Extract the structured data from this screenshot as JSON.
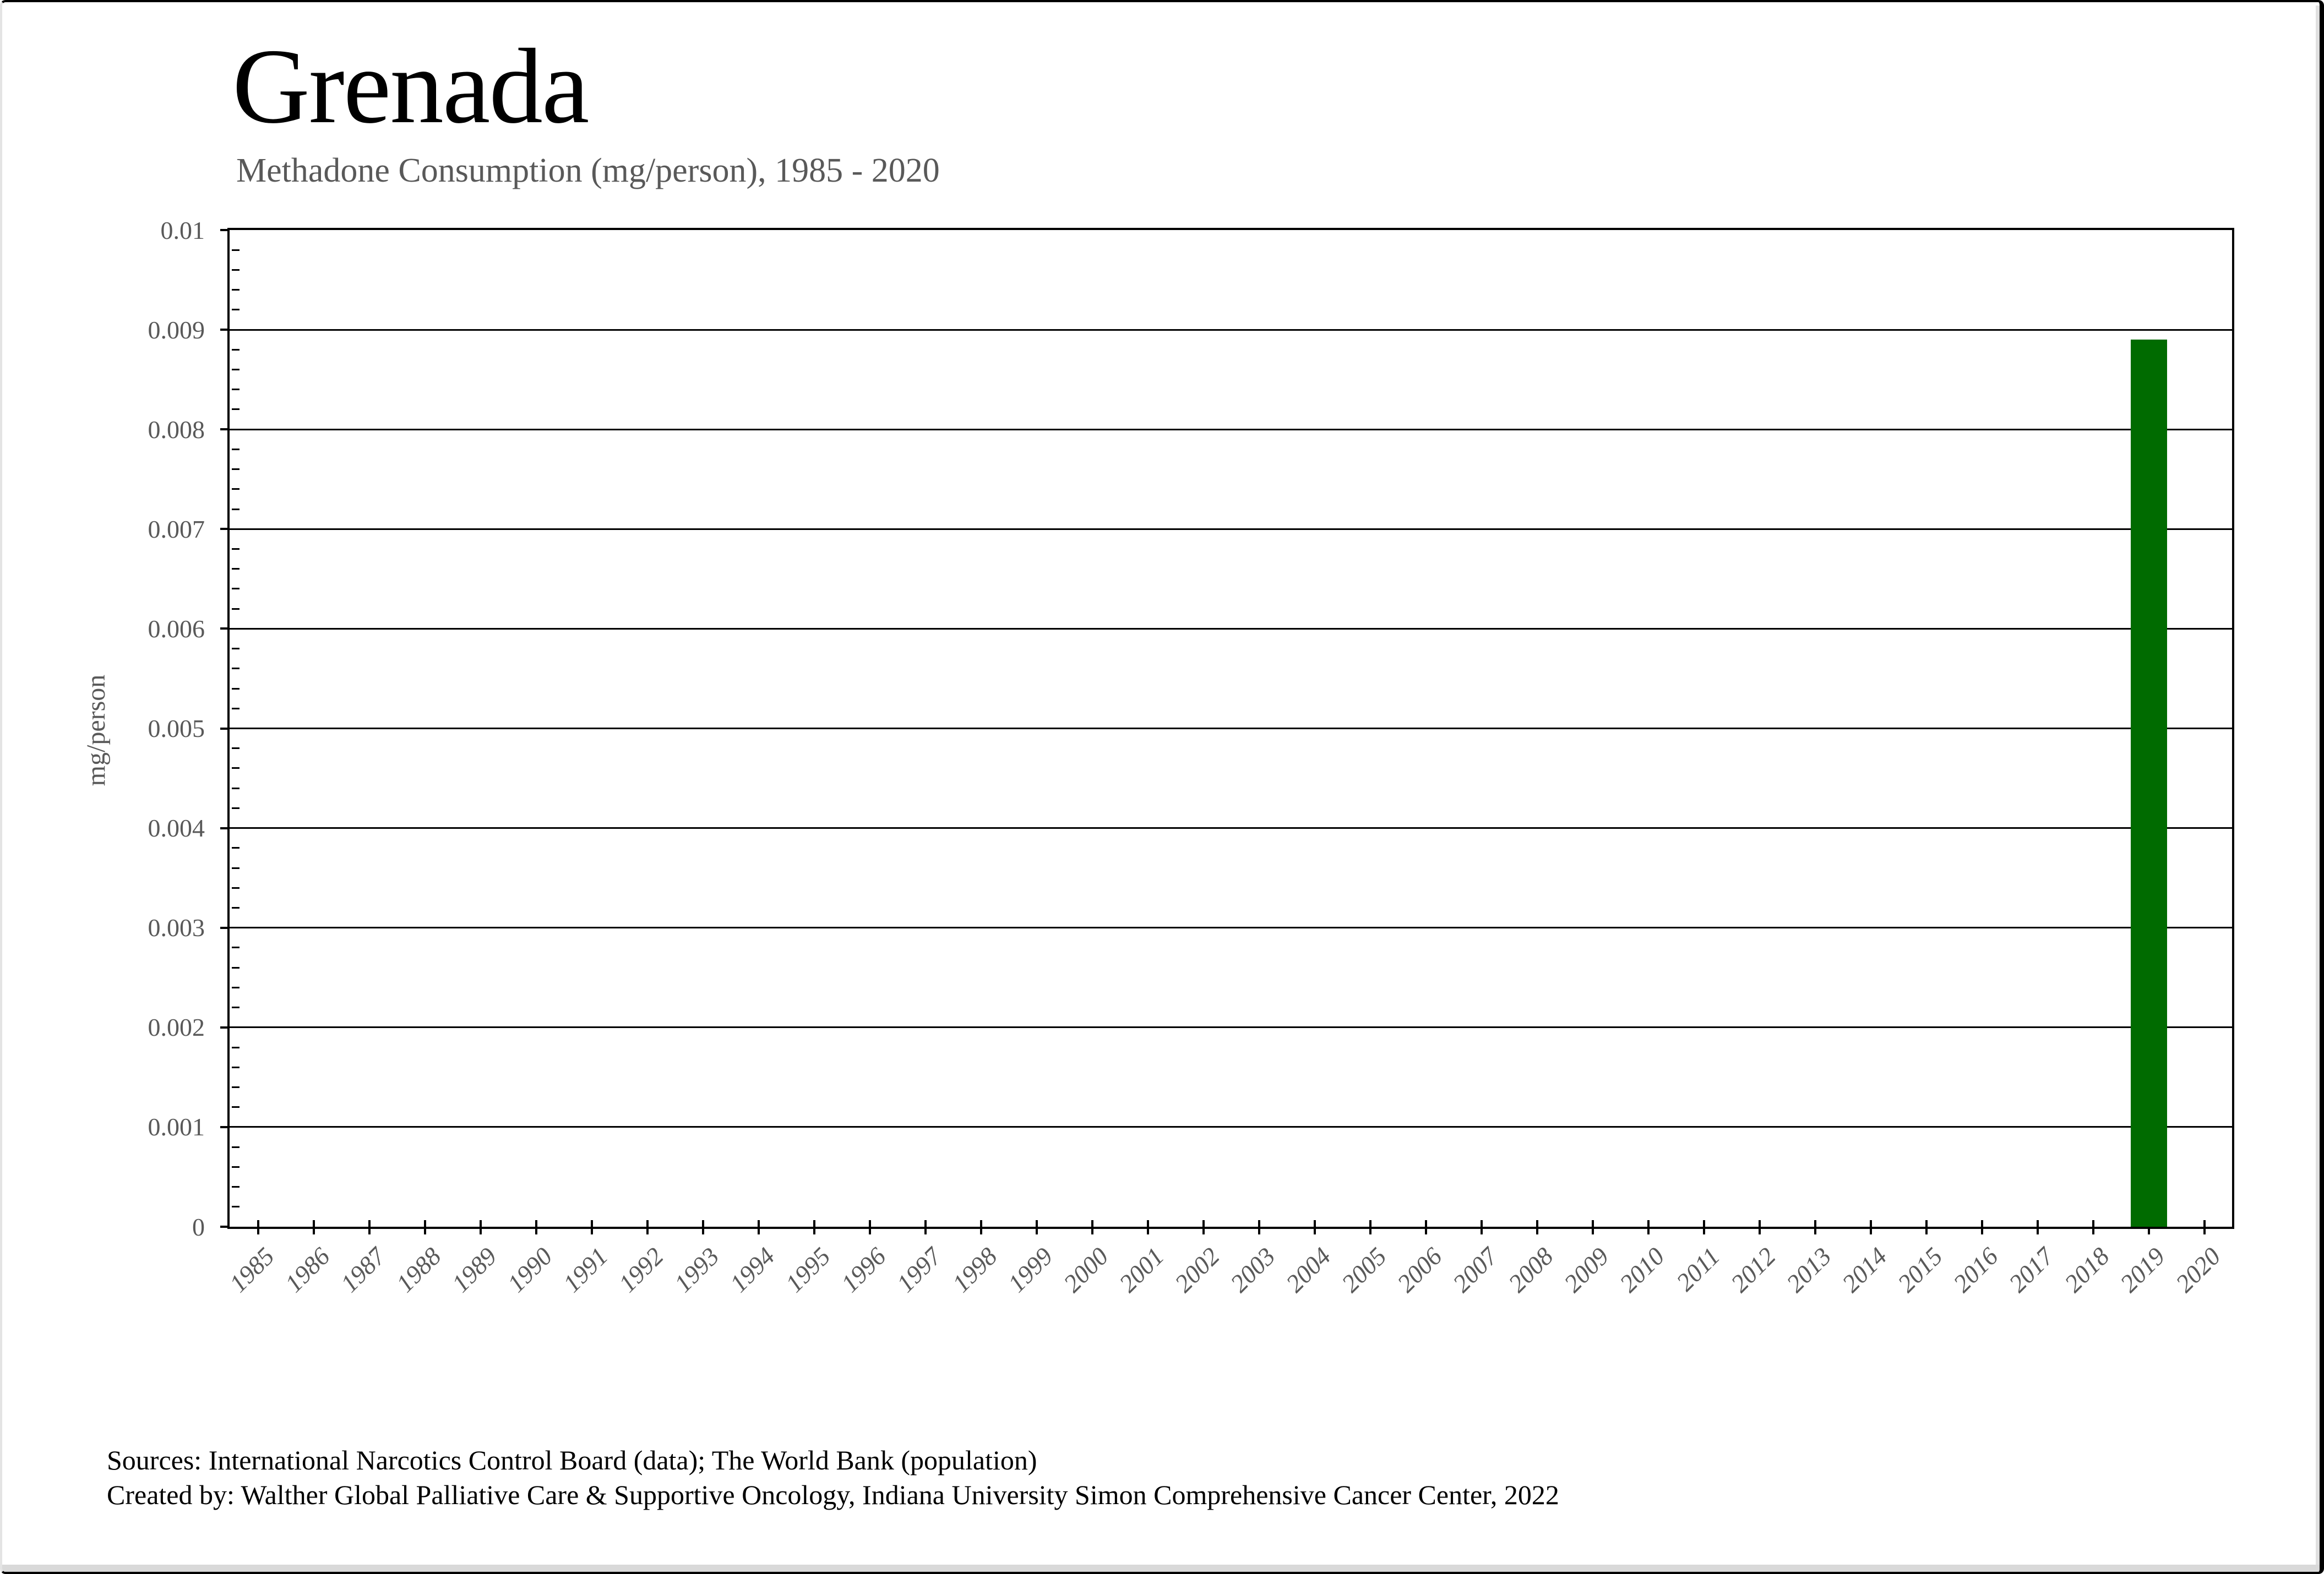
{
  "header": {
    "title": "Grenada",
    "subtitle": "Methadone Consumption (mg/person), 1985 - 2020"
  },
  "chart_data": {
    "type": "bar",
    "title": "Grenada",
    "subtitle": "Methadone Consumption (mg/person), 1985 - 2020",
    "xlabel": "",
    "ylabel": "mg/person",
    "ylim": [
      0,
      0.01
    ],
    "ytick_step": 0.001,
    "y_minor_step": 0.0002,
    "ytick_labels": [
      "0.01",
      "0.009",
      "0.008",
      "0.007",
      "0.006",
      "0.005",
      "0.004",
      "0.003",
      "0.002",
      "0.001",
      "0"
    ],
    "categories": [
      "1985",
      "1986",
      "1987",
      "1988",
      "1989",
      "1990",
      "1991",
      "1992",
      "1993",
      "1994",
      "1995",
      "1996",
      "1997",
      "1998",
      "1999",
      "2000",
      "2001",
      "2002",
      "2003",
      "2004",
      "2005",
      "2006",
      "2007",
      "2008",
      "2009",
      "2010",
      "2011",
      "2012",
      "2013",
      "2014",
      "2015",
      "2016",
      "2017",
      "2018",
      "2019",
      "2020"
    ],
    "values": [
      0,
      0,
      0,
      0,
      0,
      0,
      0,
      0,
      0,
      0,
      0,
      0,
      0,
      0,
      0,
      0,
      0,
      0,
      0,
      0,
      0,
      0,
      0,
      0,
      0,
      0,
      0,
      0,
      0,
      0,
      0,
      0,
      0,
      0,
      0.0089,
      0
    ],
    "bar_color": "#006b00",
    "grid": "horizontal-major",
    "legend": "none"
  },
  "footer": {
    "line1": "Sources: International Narcotics Control Board (data); The World Bank (population)",
    "line2": "Created by: Walther Global Palliative Care & Supportive Oncology, Indiana University Simon Comprehensive Cancer Center, 2022"
  },
  "colors": {
    "bar": "#006b00",
    "axis": "#000000",
    "tick_label": "#595959",
    "subtitle": "#595959",
    "bottom_strip": "#d9d9d9"
  }
}
